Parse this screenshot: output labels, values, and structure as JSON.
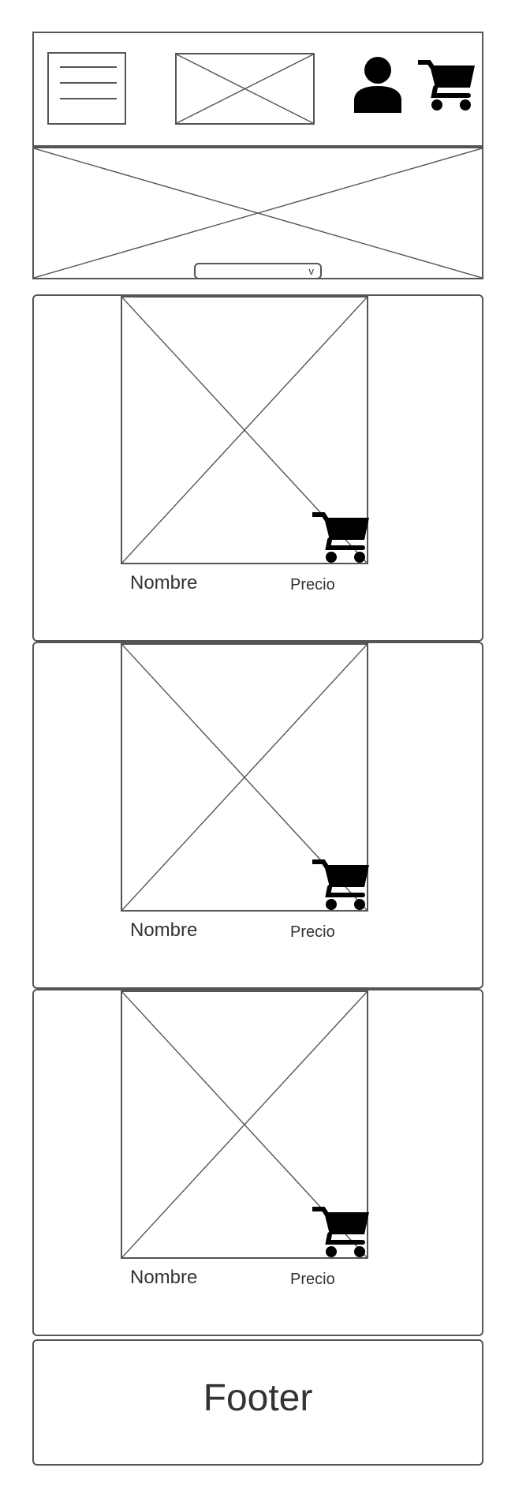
{
  "header": {
    "menu_icon": "hamburger-menu-icon",
    "logo": "image-placeholder",
    "user_icon": "user-icon",
    "cart_icon": "cart-icon"
  },
  "banner": {
    "image": "image-placeholder",
    "dropdown_chevron": "v"
  },
  "products": [
    {
      "name": "Nombre",
      "price": "Precio"
    },
    {
      "name": "Nombre",
      "price": "Precio"
    },
    {
      "name": "Nombre",
      "price": "Precio"
    }
  ],
  "footer": {
    "label": "Footer"
  },
  "colors": {
    "stroke": "#555555",
    "icon": "#000000",
    "text": "#333333",
    "background": "#ffffff"
  }
}
